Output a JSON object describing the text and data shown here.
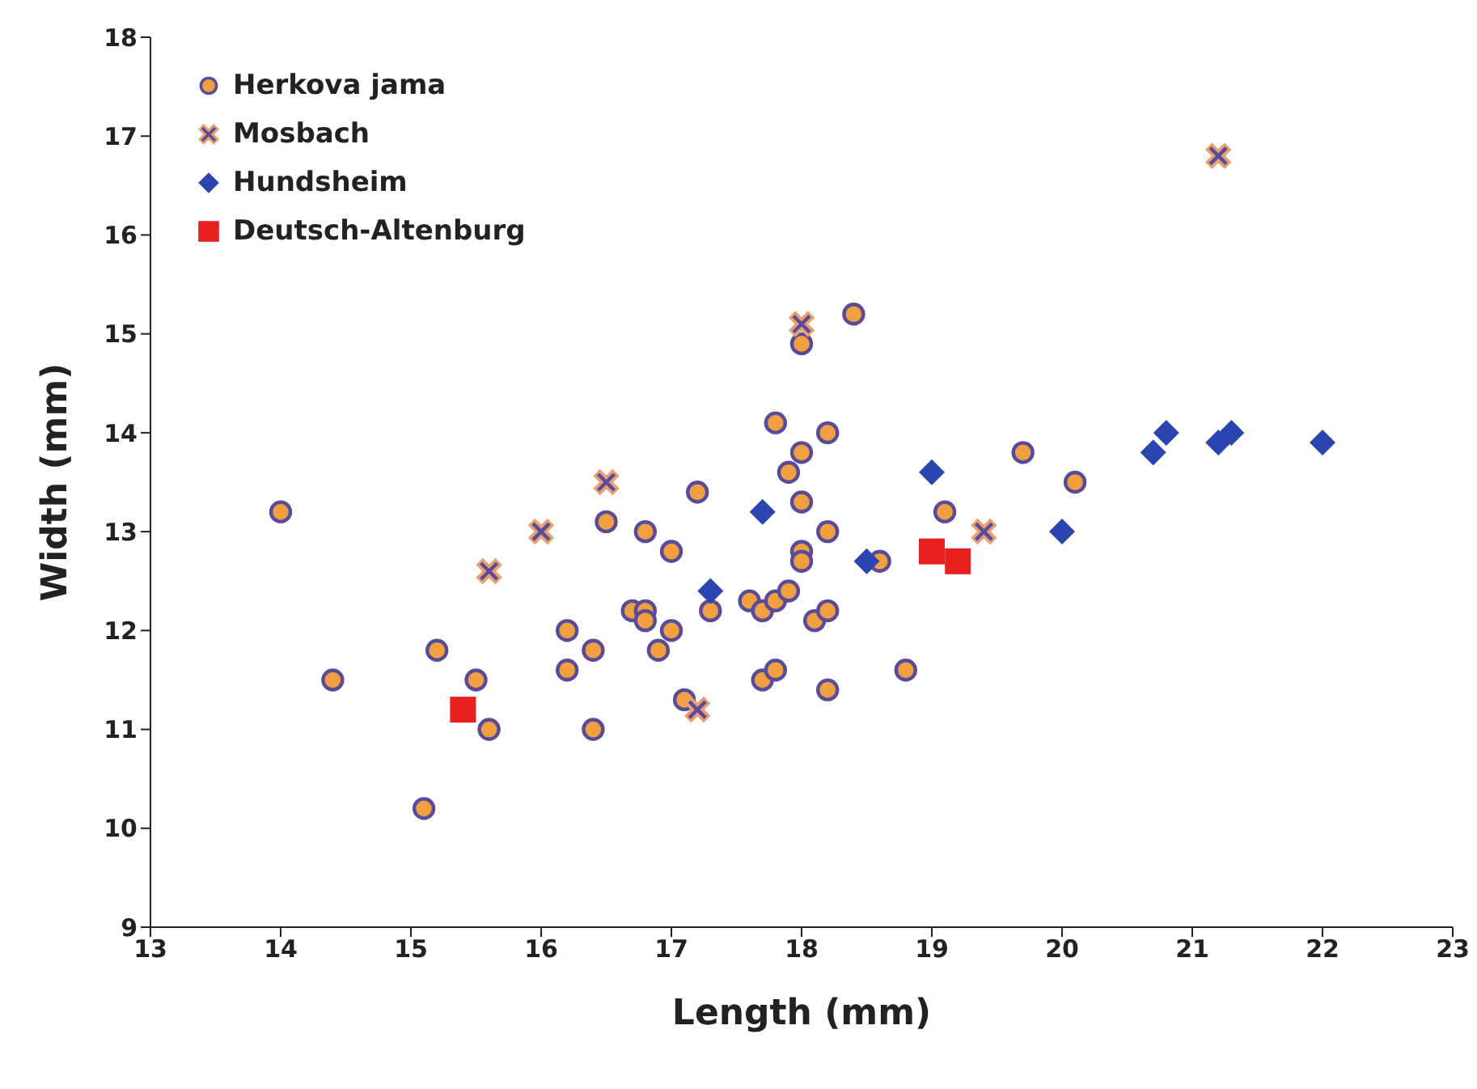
{
  "chart_data": {
    "type": "scatter",
    "xlabel": "Length (mm)",
    "ylabel": "Width (mm)",
    "xlim": [
      13,
      23
    ],
    "xticks": [
      13,
      14,
      15,
      16,
      17,
      18,
      19,
      20,
      21,
      22,
      23
    ],
    "ylim": [
      9,
      18
    ],
    "yticks": [
      9,
      10,
      11,
      12,
      13,
      14,
      15,
      16,
      17,
      18
    ],
    "grid": false,
    "legend": "top left",
    "series": [
      {
        "name": "Herkova jama",
        "marker": "circle",
        "color": "#f0a040",
        "x": [
          14.0,
          14.4,
          15.1,
          15.2,
          15.5,
          15.6,
          16.2,
          16.2,
          16.4,
          16.4,
          16.5,
          16.7,
          16.8,
          16.8,
          16.8,
          16.9,
          17.0,
          17.0,
          17.1,
          17.2,
          17.3,
          17.6,
          17.7,
          17.7,
          17.8,
          17.8,
          17.8,
          17.9,
          17.9,
          18.0,
          18.0,
          18.0,
          18.0,
          18.0,
          18.1,
          18.2,
          18.2,
          18.2,
          18.2,
          18.4,
          18.6,
          18.8,
          19.1,
          19.7,
          20.1
        ],
        "values": [
          13.2,
          11.5,
          10.2,
          11.8,
          11.5,
          11.0,
          12.0,
          11.6,
          11.8,
          11.0,
          13.1,
          12.2,
          12.2,
          12.1,
          13.0,
          11.8,
          12.8,
          12.0,
          11.3,
          13.4,
          12.2,
          12.3,
          12.2,
          11.5,
          12.3,
          11.6,
          14.1,
          12.4,
          13.6,
          13.8,
          13.3,
          12.8,
          12.7,
          14.9,
          12.1,
          12.2,
          11.4,
          13.0,
          14.0,
          15.2,
          12.7,
          11.6,
          13.2,
          13.8,
          13.5
        ]
      },
      {
        "name": "Mosbach",
        "marker": "cross",
        "color": "#e8a070",
        "x": [
          15.6,
          16.0,
          16.5,
          17.2,
          18.0,
          19.4,
          21.2
        ],
        "values": [
          12.6,
          13.0,
          13.5,
          11.2,
          15.1,
          13.0,
          16.8
        ]
      },
      {
        "name": "Hundsheim",
        "marker": "diamond",
        "color": "#2a44b0",
        "x": [
          17.3,
          17.7,
          18.5,
          19.0,
          20.0,
          20.7,
          20.8,
          21.2,
          21.3,
          22.0
        ],
        "values": [
          12.4,
          13.2,
          12.7,
          13.6,
          13.0,
          13.8,
          14.0,
          13.9,
          14.0,
          13.9
        ]
      },
      {
        "name": "Deutsch-Altenburg",
        "marker": "square",
        "color": "#e82020",
        "x": [
          15.4,
          19.0,
          19.2
        ],
        "values": [
          11.2,
          12.8,
          12.7
        ]
      }
    ]
  }
}
